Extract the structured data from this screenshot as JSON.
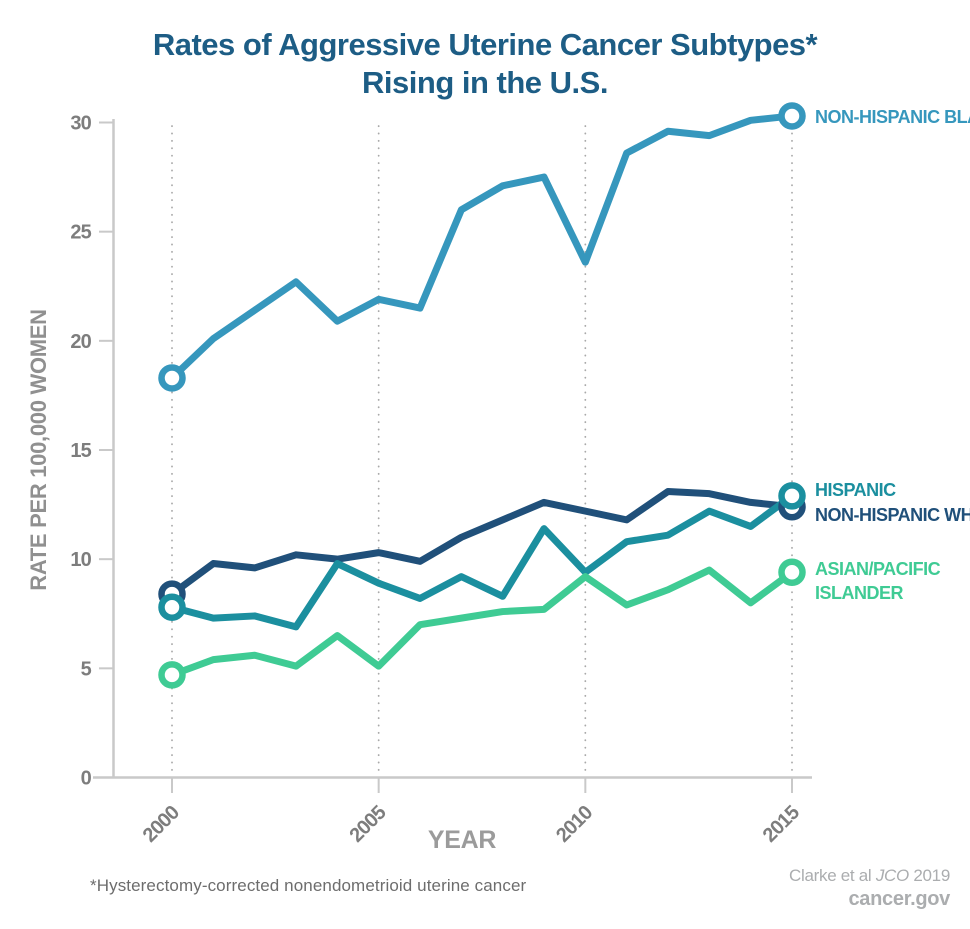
{
  "header": {
    "title_line1": "Rates of Aggressive Uterine Cancer Subtypes*",
    "title_line2": "Rising in the U.S.",
    "title_color": "#1d5d85"
  },
  "chart_data": {
    "type": "line",
    "x": [
      2000,
      2001,
      2002,
      2003,
      2004,
      2005,
      2006,
      2007,
      2008,
      2009,
      2010,
      2011,
      2012,
      2013,
      2014,
      2015
    ],
    "series": [
      {
        "name": "NON-HISPANIC BLACK",
        "label_lines": [
          "NON-HISPANIC BLACK"
        ],
        "color": "#3697bd",
        "values": [
          18.3,
          20.1,
          21.4,
          22.7,
          20.9,
          21.9,
          21.5,
          26.0,
          27.1,
          27.5,
          23.6,
          28.6,
          29.6,
          29.4,
          30.1,
          30.3
        ]
      },
      {
        "name": "NON-HISPANIC WHITE",
        "label_lines": [
          "NON-HISPANIC WHITE"
        ],
        "color": "#20507a",
        "values": [
          8.4,
          9.8,
          9.6,
          10.2,
          10.0,
          10.3,
          9.9,
          11.0,
          11.8,
          12.6,
          12.2,
          11.8,
          13.1,
          13.0,
          12.6,
          12.4
        ]
      },
      {
        "name": "HISPANIC",
        "label_lines": [
          "HISPANIC"
        ],
        "color": "#1b8f9f",
        "values": [
          7.8,
          7.3,
          7.4,
          6.9,
          9.8,
          8.9,
          8.2,
          9.2,
          8.3,
          11.4,
          9.4,
          10.8,
          11.1,
          12.2,
          11.5,
          12.9
        ]
      },
      {
        "name": "ASIAN/PACIFIC ISLANDER",
        "label_lines": [
          "ASIAN/PACIFIC",
          "ISLANDER"
        ],
        "color": "#3fcb94",
        "values": [
          4.7,
          5.4,
          5.6,
          5.1,
          6.5,
          5.1,
          7.0,
          7.3,
          7.6,
          7.7,
          9.2,
          7.9,
          8.6,
          9.5,
          8.0,
          9.4
        ]
      }
    ],
    "title": "Rates of Aggressive Uterine Cancer Subtypes* Rising in the U.S.",
    "xlabel": "YEAR",
    "ylabel": "RATE PER 100,000 WOMEN",
    "ylim": [
      0,
      30
    ],
    "yticks": [
      0,
      5,
      10,
      15,
      20,
      25,
      30
    ],
    "xticks": [
      2000,
      2005,
      2010,
      2015
    ],
    "grid": "vertical dotted lines at labeled years",
    "legend_position": "labels at right end of each line",
    "markers": "open circles at first (2000) and last (2015) data points"
  },
  "footnote": "*Hysterectomy-corrected nonendometrioid uterine cancer",
  "source": {
    "citation_prefix": "Clarke et al ",
    "citation_journal": "JCO",
    "citation_suffix": " 2019",
    "site": "cancer.gov"
  }
}
